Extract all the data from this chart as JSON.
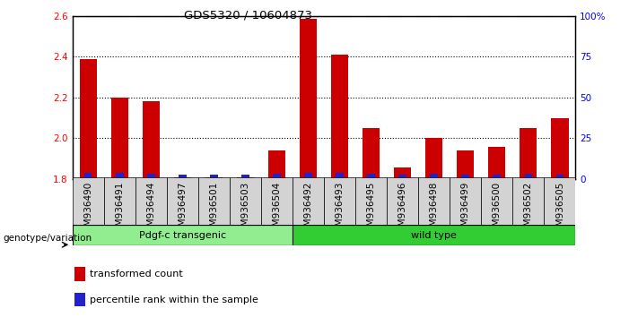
{
  "title": "GDS5320 / 10604873",
  "samples": [
    "GSM936490",
    "GSM936491",
    "GSM936494",
    "GSM936497",
    "GSM936501",
    "GSM936503",
    "GSM936504",
    "GSM936492",
    "GSM936493",
    "GSM936495",
    "GSM936496",
    "GSM936498",
    "GSM936499",
    "GSM936500",
    "GSM936502",
    "GSM936505"
  ],
  "red_values": [
    2.39,
    2.2,
    2.18,
    1.81,
    1.81,
    1.81,
    1.94,
    2.585,
    2.41,
    2.05,
    1.855,
    2.0,
    1.94,
    1.96,
    2.05,
    2.1
  ],
  "blue_pct": [
    10,
    10,
    8,
    3,
    3,
    3,
    6,
    10,
    10,
    8,
    3,
    6,
    3,
    3,
    6,
    3
  ],
  "ymin": 1.8,
  "ymax": 2.6,
  "yticks": [
    1.8,
    2.0,
    2.2,
    2.4,
    2.6
  ],
  "y2ticks": [
    0,
    25,
    50,
    75,
    100
  ],
  "y2labels": [
    "0",
    "25",
    "50",
    "75",
    "100%"
  ],
  "groups": [
    {
      "label": "Pdgf-c transgenic",
      "start": 0,
      "end": 7,
      "color": "#90EE90"
    },
    {
      "label": "wild type",
      "start": 7,
      "end": 16,
      "color": "#32CD32"
    }
  ],
  "bar_color": "#CC0000",
  "blue_color": "#2222CC",
  "legend_items": [
    {
      "color": "#CC0000",
      "label": "transformed count"
    },
    {
      "color": "#2222CC",
      "label": "percentile rank within the sample"
    }
  ],
  "tick_fontsize": 7.5,
  "title_fontsize": 9.5
}
